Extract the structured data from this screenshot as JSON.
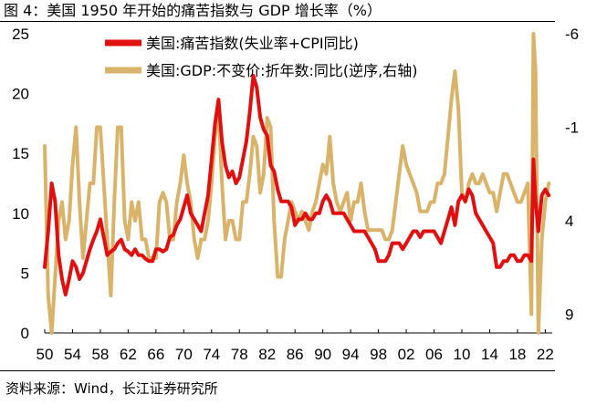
{
  "figure": {
    "title": "图 4：美国 1950 年开始的痛苦指数与 GDP 增长率（%）",
    "source": "资料来源：Wind，长江证券研究所"
  },
  "chart_data": {
    "type": "line",
    "title": "美国 1950 年开始的痛苦指数与 GDP 增长率（%）",
    "x_range": [
      1950,
      2023
    ],
    "x_tick_labels": [
      "50",
      "54",
      "58",
      "62",
      "66",
      "70",
      "74",
      "78",
      "82",
      "86",
      "90",
      "94",
      "98",
      "02",
      "06",
      "10",
      "14",
      "18",
      "22"
    ],
    "x_tick_values": [
      1950,
      1954,
      1958,
      1962,
      1966,
      1970,
      1974,
      1978,
      1982,
      1986,
      1990,
      1994,
      1998,
      2002,
      2006,
      2010,
      2014,
      2018,
      2022
    ],
    "y_left": {
      "range": [
        0,
        25
      ],
      "ticks": [
        0,
        5,
        10,
        15,
        20,
        25
      ],
      "label": ""
    },
    "y_right": {
      "range": [
        -6,
        10
      ],
      "inverted": true,
      "ticks": [
        -6,
        -1,
        4,
        9
      ],
      "label": ""
    },
    "legend_position": "top-center",
    "series": [
      {
        "name": "美国:痛苦指数(失业率+CPI同比)",
        "axis": "left",
        "color": "#e01010",
        "x": [
          1950,
          1950.5,
          1951,
          1951.5,
          1952,
          1952.5,
          1953,
          1953.5,
          1954,
          1954.5,
          1955,
          1955.5,
          1956,
          1956.5,
          1957,
          1957.5,
          1958,
          1958.5,
          1959,
          1959.5,
          1960,
          1960.5,
          1961,
          1961.5,
          1962,
          1962.5,
          1963,
          1963.5,
          1964,
          1964.5,
          1965,
          1965.5,
          1966,
          1966.5,
          1967,
          1967.5,
          1968,
          1968.5,
          1969,
          1969.5,
          1970,
          1970.5,
          1971,
          1971.5,
          1972,
          1972.5,
          1973,
          1973.5,
          1974,
          1974.5,
          1975,
          1975.5,
          1976,
          1976.5,
          1977,
          1977.5,
          1978,
          1978.5,
          1979,
          1979.5,
          1980,
          1980.5,
          1981,
          1981.5,
          1982,
          1982.5,
          1983,
          1983.5,
          1984,
          1984.5,
          1985,
          1985.5,
          1986,
          1986.5,
          1987,
          1987.5,
          1988,
          1988.5,
          1989,
          1989.5,
          1990,
          1990.5,
          1991,
          1991.5,
          1992,
          1992.5,
          1993,
          1993.5,
          1994,
          1994.5,
          1995,
          1995.5,
          1996,
          1996.5,
          1997,
          1997.5,
          1998,
          1998.5,
          1999,
          1999.5,
          2000,
          2000.5,
          2001,
          2001.5,
          2002,
          2002.5,
          2003,
          2003.5,
          2004,
          2004.5,
          2005,
          2005.5,
          2006,
          2006.5,
          2007,
          2007.5,
          2008,
          2008.5,
          2009,
          2009.5,
          2010,
          2010.5,
          2011,
          2011.5,
          2012,
          2012.5,
          2013,
          2013.5,
          2014,
          2014.5,
          2015,
          2015.5,
          2016,
          2016.5,
          2017,
          2017.5,
          2018,
          2018.5,
          2019,
          2019.5,
          2020,
          2020.3,
          2020.6,
          2021,
          2021.5,
          2022,
          2022.5
        ],
        "values": [
          5.5,
          8.5,
          12.5,
          11.0,
          6.5,
          4.5,
          3.2,
          4.5,
          6.0,
          5.5,
          4.5,
          5.0,
          6.0,
          7.0,
          7.8,
          8.5,
          9.5,
          8.0,
          6.5,
          6.8,
          7.0,
          7.5,
          7.8,
          7.0,
          6.8,
          6.5,
          7.0,
          6.5,
          6.5,
          6.2,
          6.0,
          6.0,
          7.0,
          7.0,
          6.8,
          7.0,
          8.0,
          8.2,
          9.0,
          9.5,
          10.5,
          11.5,
          10.0,
          9.5,
          9.0,
          8.5,
          10.0,
          11.5,
          14.5,
          17.5,
          19.5,
          16.0,
          14.0,
          13.0,
          13.5,
          12.5,
          13.0,
          14.5,
          16.0,
          18.5,
          21.5,
          20.5,
          18.0,
          17.0,
          16.5,
          14.0,
          13.5,
          12.0,
          11.0,
          11.0,
          11.0,
          10.5,
          9.0,
          9.5,
          9.5,
          10.0,
          9.5,
          9.5,
          10.0,
          10.0,
          11.0,
          11.5,
          11.0,
          10.0,
          10.0,
          10.0,
          10.0,
          9.5,
          9.0,
          8.5,
          8.5,
          8.5,
          8.5,
          8.0,
          7.5,
          7.0,
          6.0,
          6.0,
          6.0,
          6.5,
          7.5,
          7.5,
          7.5,
          7.0,
          7.5,
          8.0,
          8.5,
          8.5,
          8.0,
          8.5,
          8.5,
          8.5,
          8.5,
          8.0,
          7.5,
          8.5,
          9.5,
          10.5,
          9.0,
          11.0,
          11.5,
          11.0,
          12.0,
          11.5,
          10.0,
          9.5,
          9.0,
          8.5,
          8.0,
          7.5,
          5.5,
          5.5,
          6.0,
          6.0,
          6.5,
          6.5,
          6.0,
          6.0,
          6.5,
          6.5,
          6.0,
          14.5,
          11.0,
          8.5,
          11.5,
          12.0,
          11.5
        ]
      },
      {
        "name": "美国:GDP:不变价:折年数:同比(逆序,右轴)",
        "axis": "right",
        "color": "#d9b36a",
        "x": [
          1950,
          1950.5,
          1951,
          1951.5,
          1952,
          1952.5,
          1953,
          1953.5,
          1954,
          1954.5,
          1955,
          1955.5,
          1956,
          1956.5,
          1957,
          1957.5,
          1958,
          1958.5,
          1959,
          1959.5,
          1960,
          1960.5,
          1961,
          1961.5,
          1962,
          1962.5,
          1963,
          1963.5,
          1964,
          1964.5,
          1965,
          1965.5,
          1966,
          1966.5,
          1967,
          1967.5,
          1968,
          1968.5,
          1969,
          1969.5,
          1970,
          1970.5,
          1971,
          1971.5,
          1972,
          1972.5,
          1973,
          1973.5,
          1974,
          1974.5,
          1975,
          1975.5,
          1976,
          1976.5,
          1977,
          1977.5,
          1978,
          1978.5,
          1979,
          1979.5,
          1980,
          1980.5,
          1981,
          1981.5,
          1982,
          1982.5,
          1983,
          1983.5,
          1984,
          1984.5,
          1985,
          1985.5,
          1986,
          1986.5,
          1987,
          1987.5,
          1988,
          1988.5,
          1989,
          1989.5,
          1990,
          1990.5,
          1991,
          1991.5,
          1992,
          1992.5,
          1993,
          1993.5,
          1994,
          1994.5,
          1995,
          1995.5,
          1996,
          1996.5,
          1997,
          1997.5,
          1998,
          1998.5,
          1999,
          1999.5,
          2000,
          2000.5,
          2001,
          2001.5,
          2002,
          2002.5,
          2003,
          2003.5,
          2004,
          2004.5,
          2005,
          2005.5,
          2006,
          2006.5,
          2007,
          2007.5,
          2008,
          2008.5,
          2009,
          2009.5,
          2010,
          2010.5,
          2011,
          2011.5,
          2012,
          2012.5,
          2013,
          2013.5,
          2014,
          2014.5,
          2015,
          2015.5,
          2016,
          2016.5,
          2017,
          2017.5,
          2018,
          2018.5,
          2019,
          2019.5,
          2020,
          2020.3,
          2020.6,
          2021,
          2021.5,
          2022,
          2022.5
        ],
        "values": [
          0,
          8,
          10,
          7,
          4,
          3,
          5,
          4,
          1,
          -1,
          3,
          6,
          4,
          2,
          2,
          -1,
          -1,
          2,
          5,
          8,
          3,
          -1,
          -1,
          4,
          5,
          3,
          4,
          3,
          5,
          5,
          6,
          6,
          6,
          3,
          2.5,
          3,
          5,
          5,
          3,
          2,
          0.5,
          2,
          3,
          5,
          6,
          5,
          5,
          4,
          2,
          -0.5,
          -2,
          2,
          5,
          4,
          4,
          5,
          5,
          3,
          3,
          1.5,
          -0.5,
          0,
          2.5,
          1.5,
          -1.5,
          -1,
          4,
          7,
          7,
          5,
          4,
          3,
          3.5,
          4,
          3.5,
          4,
          4.5,
          3.5,
          3,
          2,
          1,
          1.5,
          -0.5,
          2,
          3,
          3.5,
          3,
          2.5,
          4,
          3,
          3,
          2,
          3.5,
          4.5,
          4.5,
          4.5,
          4.5,
          4.5,
          5,
          5,
          4.5,
          3,
          1.5,
          0,
          1,
          1.5,
          2,
          2.5,
          3.5,
          3.5,
          3.5,
          3,
          3,
          2,
          2,
          1.5,
          -0.5,
          -2.5,
          -4,
          -2,
          2.5,
          3,
          2,
          1.5,
          2,
          2,
          1.5,
          2,
          2.5,
          2.5,
          3.5,
          2.5,
          1.5,
          1.5,
          2,
          2.5,
          3,
          3,
          2.5,
          2,
          9,
          -9,
          -4,
          12,
          5,
          3,
          2
        ]
      }
    ]
  }
}
